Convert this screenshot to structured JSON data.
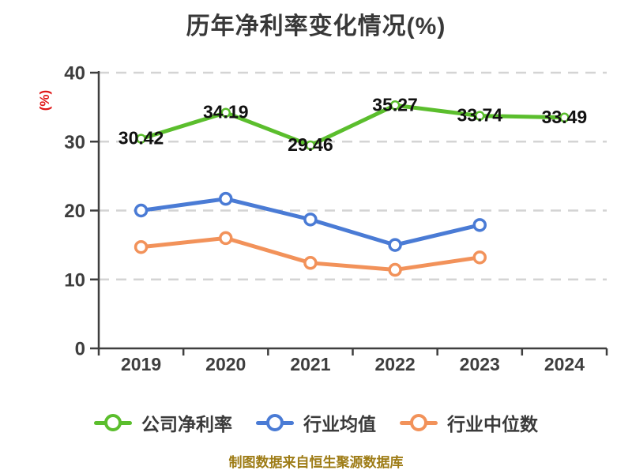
{
  "title": "历年净利率变化情况(%)",
  "footer_note": "制图数据来自恒生聚源数据库",
  "colors": {
    "company_line": "#5bbe2d",
    "industry_mean_line": "#4a7bd5",
    "industry_median_line": "#f2925a",
    "axis": "#3f3f3f",
    "grid": "#d4d4d4",
    "tick_label": "#3e3e3e",
    "title_text": "#383838",
    "data_label": "#111111",
    "y_axis_label": "#e01717",
    "footer_text": "#9e7c16",
    "background": "#ffffff"
  },
  "chart_data": {
    "type": "line",
    "title": "历年净利率变化情况(%)",
    "categories": [
      "2019",
      "2020",
      "2021",
      "2022",
      "2023",
      "2024"
    ],
    "series": [
      {
        "name": "公司净利率",
        "color": "#5bbe2d",
        "values": [
          30.42,
          34.19,
          29.46,
          35.27,
          33.74,
          33.49
        ],
        "point_labels": [
          "30.42",
          "34.19",
          "29.46",
          "35.27",
          "33.74",
          "33.49"
        ]
      },
      {
        "name": "行业均值",
        "color": "#4a7bd5",
        "values": [
          20.0,
          21.7,
          18.7,
          15.0,
          17.9
        ],
        "values_estimated": true
      },
      {
        "name": "行业中位数",
        "color": "#f2925a",
        "values": [
          14.7,
          16.0,
          12.4,
          11.4,
          13.2
        ],
        "values_estimated": true
      }
    ],
    "xlabel": "",
    "ylabel": "(%)",
    "ylim": [
      0,
      40
    ],
    "yticks": [
      0,
      10,
      20,
      30,
      40
    ],
    "grid": "horizontal-dashed",
    "legend_position": "bottom"
  }
}
